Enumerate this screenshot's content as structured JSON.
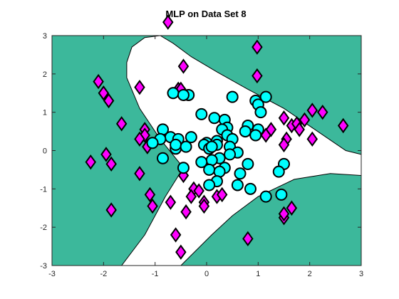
{
  "chart_data": {
    "type": "scatter",
    "title": "MLP on Data Set 8",
    "xlabel": "",
    "ylabel": "",
    "xlim": [
      -3,
      3
    ],
    "ylim": [
      -3,
      3
    ],
    "xticks": [
      "-3",
      "-2",
      "-1",
      "0",
      "1",
      "2",
      "3"
    ],
    "yticks": [
      "-3",
      "-2",
      "-1",
      "0",
      "1",
      "2",
      "3"
    ],
    "grid": false,
    "background_region_color": "#3cb89b",
    "decision_region_color": "#ffffff",
    "decision_region": [
      [
        -1.55,
        2.3
      ],
      [
        -1.45,
        2.7
      ],
      [
        -1.2,
        2.95
      ],
      [
        -0.9,
        3.0
      ],
      [
        -0.65,
        2.8
      ],
      [
        -0.3,
        2.45
      ],
      [
        0.2,
        2.05
      ],
      [
        0.8,
        1.6
      ],
      [
        1.5,
        1.1
      ],
      [
        2.1,
        0.55
      ],
      [
        2.7,
        0.0
      ],
      [
        3.0,
        -0.1
      ],
      [
        3.0,
        -0.65
      ],
      [
        2.4,
        -0.6
      ],
      [
        1.7,
        -0.75
      ],
      [
        1.0,
        -1.2
      ],
      [
        0.5,
        -1.7
      ],
      [
        0.1,
        -2.2
      ],
      [
        -0.2,
        -2.6
      ],
      [
        -0.5,
        -3.0
      ],
      [
        -1.65,
        -3.0
      ],
      [
        -1.2,
        -2.2
      ],
      [
        -0.8,
        -1.2
      ],
      [
        -0.45,
        -0.45
      ],
      [
        -0.9,
        0.3
      ],
      [
        -1.3,
        1.1
      ],
      [
        -1.55,
        1.9
      ]
    ],
    "series": [
      {
        "marker": "diamond",
        "color": "#ff00ff",
        "points": [
          [
            -0.75,
            3.35
          ],
          [
            0.98,
            2.7
          ],
          [
            -0.45,
            2.2
          ],
          [
            0.98,
            1.95
          ],
          [
            -2.1,
            1.8
          ],
          [
            -1.3,
            1.65
          ],
          [
            -0.55,
            1.6
          ],
          [
            -0.5,
            1.6
          ],
          [
            -2.0,
            1.5
          ],
          [
            -1.9,
            1.3
          ],
          [
            -1.65,
            0.7
          ],
          [
            -1.2,
            0.55
          ],
          [
            1.15,
            0.4
          ],
          [
            -1.2,
            0.4
          ],
          [
            -1.3,
            0.3
          ],
          [
            -1.15,
            0.1
          ],
          [
            1.5,
            0.85
          ],
          [
            1.25,
            0.55
          ],
          [
            1.65,
            0.65
          ],
          [
            1.75,
            0.7
          ],
          [
            1.8,
            0.55
          ],
          [
            1.9,
            0.8
          ],
          [
            2.05,
            1.05
          ],
          [
            2.25,
            1.0
          ],
          [
            2.65,
            0.65
          ],
          [
            2.05,
            0.3
          ],
          [
            1.55,
            0.3
          ],
          [
            1.5,
            0.15
          ],
          [
            -2.25,
            -0.3
          ],
          [
            -1.95,
            -0.1
          ],
          [
            -1.85,
            -0.35
          ],
          [
            -1.3,
            -0.6
          ],
          [
            -0.45,
            -0.65
          ],
          [
            -0.25,
            -1.0
          ],
          [
            -0.3,
            -1.2
          ],
          [
            -0.15,
            -1.05
          ],
          [
            -1.1,
            -1.15
          ],
          [
            -1.05,
            -1.45
          ],
          [
            -1.85,
            -1.55
          ],
          [
            -0.7,
            -1.35
          ],
          [
            -0.05,
            -1.35
          ],
          [
            -0.05,
            -1.45
          ],
          [
            0.2,
            -1.2
          ],
          [
            0.3,
            -1.15
          ],
          [
            -0.4,
            -1.6
          ],
          [
            -0.6,
            -2.2
          ],
          [
            -0.5,
            -2.65
          ],
          [
            0.8,
            -2.3
          ],
          [
            1.5,
            -1.75
          ],
          [
            1.5,
            -1.65
          ],
          [
            1.65,
            -1.5
          ]
        ]
      },
      {
        "marker": "circle",
        "color": "#00ffff",
        "points": [
          [
            -0.65,
            1.5
          ],
          [
            -0.35,
            1.45
          ],
          [
            -0.45,
            1.45
          ],
          [
            0.5,
            1.4
          ],
          [
            1.15,
            1.4
          ],
          [
            0.95,
            1.3
          ],
          [
            1.0,
            1.2
          ],
          [
            1.05,
            1.0
          ],
          [
            -0.1,
            0.95
          ],
          [
            0.15,
            0.85
          ],
          [
            0.35,
            0.8
          ],
          [
            0.8,
            0.65
          ],
          [
            1.0,
            0.55
          ],
          [
            0.75,
            0.5
          ],
          [
            0.95,
            0.4
          ],
          [
            0.4,
            0.6
          ],
          [
            0.3,
            0.55
          ],
          [
            0.4,
            0.4
          ],
          [
            0.5,
            0.3
          ],
          [
            -0.85,
            0.55
          ],
          [
            -0.7,
            0.35
          ],
          [
            -0.55,
            0.3
          ],
          [
            -0.3,
            0.35
          ],
          [
            -0.9,
            0.3
          ],
          [
            -1.05,
            0.2
          ],
          [
            -0.6,
            0.05
          ],
          [
            -0.6,
            0.15
          ],
          [
            -0.4,
            0.1
          ],
          [
            0.0,
            0.2
          ],
          [
            -0.05,
            0.15
          ],
          [
            0.05,
            0.05
          ],
          [
            0.2,
            0.25
          ],
          [
            0.2,
            0.15
          ],
          [
            0.1,
            0.1
          ],
          [
            0.45,
            0.1
          ],
          [
            0.6,
            -0.05
          ],
          [
            0.45,
            -0.1
          ],
          [
            0.25,
            -0.2
          ],
          [
            0.1,
            -0.25
          ],
          [
            -0.1,
            -0.3
          ],
          [
            -0.85,
            -0.2
          ],
          [
            -0.45,
            -0.45
          ],
          [
            0.05,
            -0.5
          ],
          [
            0.35,
            -0.45
          ],
          [
            0.25,
            -0.55
          ],
          [
            0.2,
            -0.8
          ],
          [
            0.05,
            -0.9
          ],
          [
            0.65,
            -0.6
          ],
          [
            0.8,
            -0.35
          ],
          [
            0.6,
            -0.9
          ],
          [
            0.85,
            -1.0
          ],
          [
            1.15,
            -1.2
          ],
          [
            1.45,
            -1.15
          ],
          [
            1.5,
            -0.35
          ],
          [
            1.4,
            -0.55
          ]
        ]
      }
    ]
  }
}
